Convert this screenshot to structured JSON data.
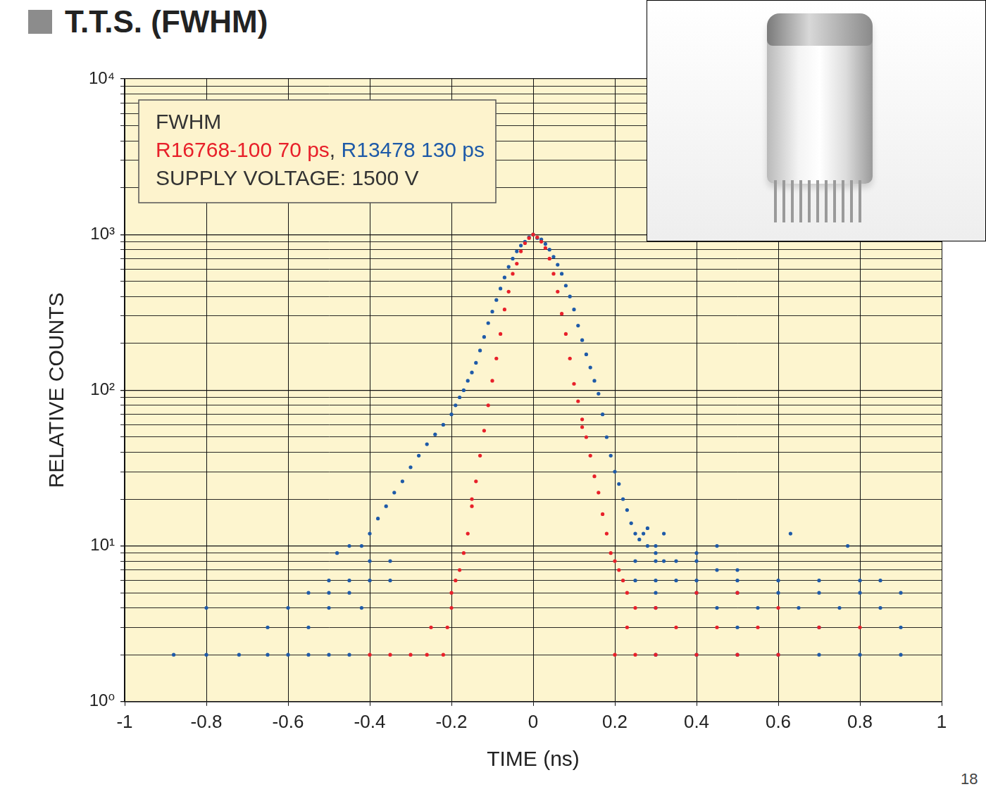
{
  "chart_data": {
    "type": "scatter",
    "title": "T.T.S. (FWHM)",
    "x_label": "TIME (ns)",
    "y_label": "RELATIVE COUNTS",
    "page_number": 18,
    "log": "y",
    "grid": true,
    "legend": "upper left",
    "annotation": {
      "header": "FWHM",
      "series_separator": ", ",
      "footer": "SUPPLY VOLTAGE: 1500 V"
    },
    "xlim": [
      -1,
      1
    ],
    "xticks": [
      -1,
      -0.8,
      -0.6,
      -0.4,
      -0.2,
      0,
      0.2,
      0.4,
      0.6,
      0.8,
      1
    ],
    "ylim": [
      1,
      10000
    ],
    "yticks": [
      {
        "value": 1,
        "label": "10⁰"
      },
      {
        "value": 10,
        "label": "10¹"
      },
      {
        "value": 100,
        "label": "10²"
      },
      {
        "value": 1000,
        "label": "10³"
      },
      {
        "value": 10000,
        "label": "10⁴"
      }
    ],
    "series": [
      {
        "name": "R16768-100 70 ps",
        "color": "#e8202a",
        "marker": "circle",
        "x": [
          -0.01,
          0,
          0.01,
          -0.02,
          0.02,
          -0.03,
          0.03,
          -0.04,
          0.04,
          -0.05,
          0.05,
          -0.06,
          0.06,
          -0.07,
          0.07,
          -0.08,
          0.08,
          -0.09,
          0.09,
          -0.1,
          0.1,
          -0.11,
          0.11,
          -0.12,
          0.12,
          -0.13,
          0.13,
          -0.14,
          0.14,
          -0.15,
          0.15,
          -0.16,
          0.16,
          -0.17,
          0.17,
          -0.18,
          0.18,
          -0.19,
          0.19,
          -0.2,
          0.2,
          0.21,
          0.22,
          0.23,
          -0.2,
          -0.21,
          -0.25,
          -0.26,
          -0.3,
          -0.35,
          -0.4,
          -0.22,
          0.25,
          0.3,
          0.35,
          0.45,
          0.5,
          0.55,
          0.6,
          0.7,
          0.4,
          0.8,
          0.25,
          0.3,
          0.4,
          0.5,
          0.6,
          0.23,
          0.2,
          -0.15,
          0.12
        ],
        "values": [
          950,
          1000,
          960,
          880,
          900,
          780,
          820,
          650,
          700,
          560,
          560,
          430,
          430,
          330,
          310,
          230,
          230,
          160,
          160,
          115,
          110,
          80,
          85,
          55,
          65,
          38,
          50,
          26,
          38,
          18,
          28,
          12,
          22,
          9,
          16,
          7,
          12,
          6,
          9,
          5,
          8,
          7,
          6,
          5,
          4,
          3,
          3,
          2,
          2,
          2,
          2,
          2,
          4,
          4,
          3,
          3,
          5,
          3,
          4,
          3,
          5,
          3,
          2,
          2,
          2,
          2,
          2,
          3,
          2,
          20,
          58
        ]
      },
      {
        "name": "R13478 130 ps",
        "color": "#1e5aa8",
        "marker": "circle",
        "x": [
          0,
          -0.01,
          0.01,
          -0.02,
          0.02,
          -0.03,
          0.03,
          -0.04,
          0.04,
          -0.05,
          0.05,
          -0.06,
          0.06,
          -0.07,
          0.07,
          -0.08,
          0.08,
          -0.09,
          0.09,
          -0.1,
          0.1,
          -0.11,
          0.11,
          -0.12,
          0.12,
          -0.13,
          0.13,
          -0.14,
          0.14,
          -0.15,
          0.15,
          -0.16,
          0.16,
          -0.17,
          0.17,
          -0.18,
          0.18,
          -0.19,
          0.19,
          -0.2,
          0.2,
          -0.22,
          0.21,
          -0.24,
          0.22,
          -0.26,
          0.23,
          -0.28,
          0.24,
          -0.3,
          0.25,
          -0.32,
          0.26,
          -0.34,
          0.28,
          -0.36,
          0.3,
          -0.38,
          0.32,
          -0.4,
          -0.42,
          -0.45,
          -0.48,
          -0.4,
          -0.35,
          -0.5,
          -0.45,
          -0.4,
          -0.35,
          -0.55,
          -0.5,
          -0.45,
          -0.6,
          -0.5,
          -0.42,
          -0.8,
          -0.65,
          -0.55,
          -0.88,
          -0.8,
          -0.72,
          -0.65,
          -0.6,
          -0.55,
          -0.5,
          -0.45,
          0.25,
          0.3,
          0.35,
          0.4,
          0.45,
          0.5,
          0.4,
          0.3,
          0.27,
          0.28,
          0.32,
          0.25,
          0.3,
          0.35,
          0.4,
          0.5,
          0.6,
          0.7,
          0.8,
          0.85,
          0.3,
          0.4,
          0.5,
          0.6,
          0.7,
          0.8,
          0.9,
          0.3,
          0.45,
          0.55,
          0.65,
          0.75,
          0.85,
          0.5,
          0.7,
          0.9,
          0.3,
          0.4,
          0.5,
          0.6,
          0.7,
          0.8,
          0.9,
          0.63,
          0.77,
          0.45
        ],
        "values": [
          1000,
          960,
          950,
          900,
          930,
          850,
          870,
          780,
          800,
          700,
          720,
          620,
          640,
          530,
          560,
          450,
          470,
          380,
          400,
          320,
          330,
          270,
          260,
          220,
          210,
          180,
          170,
          150,
          140,
          130,
          115,
          115,
          95,
          100,
          70,
          90,
          50,
          80,
          38,
          70,
          30,
          60,
          25,
          52,
          20,
          45,
          17,
          38,
          14,
          32,
          12,
          26,
          11,
          22,
          10,
          18,
          9,
          15,
          8,
          12,
          10,
          10,
          9,
          8,
          8,
          6,
          6,
          6,
          6,
          5,
          5,
          5,
          4,
          4,
          4,
          4,
          3,
          3,
          2,
          2,
          2,
          2,
          2,
          2,
          2,
          2,
          8,
          8,
          8,
          8,
          7,
          7,
          9,
          10,
          12,
          13,
          12,
          6,
          6,
          6,
          6,
          6,
          6,
          6,
          6,
          6,
          5,
          5,
          5,
          5,
          5,
          5,
          5,
          4,
          4,
          4,
          4,
          4,
          4,
          3,
          3,
          3,
          2,
          2,
          2,
          2,
          2,
          2,
          2,
          12,
          10,
          10
        ]
      }
    ]
  }
}
